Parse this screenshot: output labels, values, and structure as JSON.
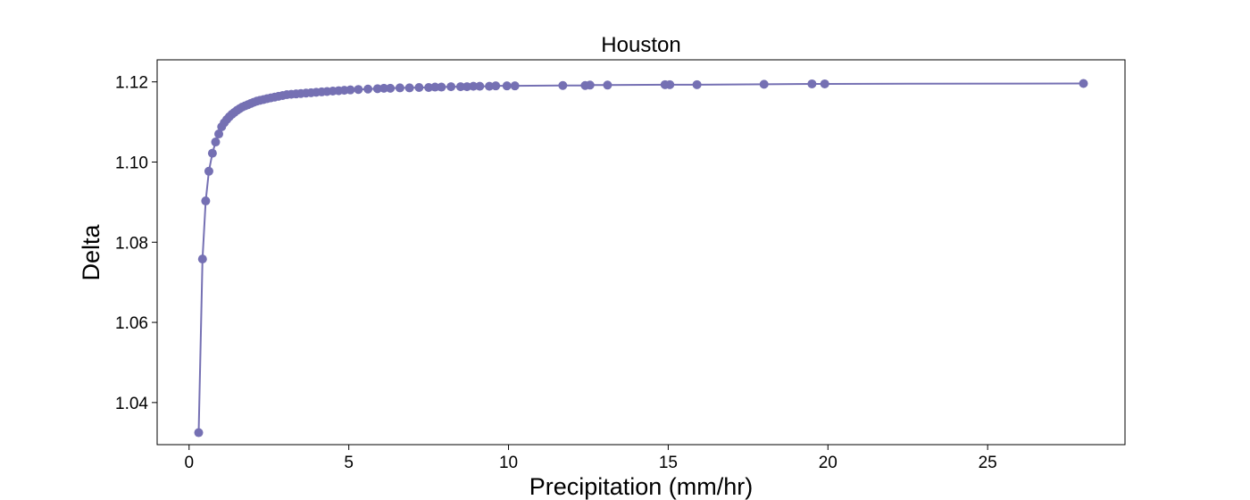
{
  "chart_data": {
    "type": "line",
    "title": "Houston",
    "xlabel": "Precipitation (mm/hr)",
    "ylabel": "Delta",
    "xlim": [
      -1.0,
      29.3
    ],
    "ylim": [
      1.0295,
      1.1255
    ],
    "xticks": [
      0,
      5,
      10,
      15,
      20,
      25
    ],
    "xtick_labels": [
      "0",
      "5",
      "10",
      "15",
      "20",
      "25"
    ],
    "yticks": [
      1.04,
      1.06,
      1.08,
      1.1,
      1.12
    ],
    "ytick_labels": [
      "1.04",
      "1.06",
      "1.08",
      "1.10",
      "1.12"
    ],
    "grid": false,
    "legend": "none",
    "color": "#7570b3",
    "marker": "circle",
    "series": [
      {
        "x": [
          0.3,
          0.42,
          0.52,
          0.62,
          0.73,
          0.83,
          0.93,
          1.02,
          1.1,
          1.18,
          1.26,
          1.34,
          1.42,
          1.5,
          1.58,
          1.66,
          1.75,
          1.84,
          1.93,
          2.02,
          2.12,
          2.22,
          2.33,
          2.44,
          2.56,
          2.68,
          2.8,
          2.93,
          3.06,
          3.2,
          3.35,
          3.5,
          3.66,
          3.82,
          3.98,
          4.15,
          4.32,
          4.5,
          4.68,
          4.86,
          5.05,
          5.3,
          5.6,
          5.9,
          6.1,
          6.3,
          6.6,
          6.9,
          7.2,
          7.5,
          7.7,
          7.9,
          8.2,
          8.5,
          8.7,
          8.9,
          9.1,
          9.4,
          9.6,
          9.95,
          10.2,
          11.7,
          12.4,
          12.55,
          13.1,
          14.9,
          15.05,
          15.9,
          18.0,
          19.5,
          19.9,
          28.0
        ],
        "y": [
          1.0325,
          1.0758,
          1.0903,
          1.0977,
          1.1022,
          1.105,
          1.107,
          1.1088,
          1.1098,
          1.1106,
          1.1113,
          1.1119,
          1.1124,
          1.1129,
          1.1133,
          1.1137,
          1.114,
          1.1143,
          1.1146,
          1.1149,
          1.1152,
          1.1154,
          1.1156,
          1.1158,
          1.116,
          1.1162,
          1.1164,
          1.1166,
          1.1168,
          1.1169,
          1.117,
          1.1171,
          1.1172,
          1.1173,
          1.1174,
          1.1175,
          1.1176,
          1.1177,
          1.1178,
          1.1179,
          1.118,
          1.1181,
          1.1182,
          1.1183,
          1.1184,
          1.1184,
          1.1185,
          1.1185,
          1.1186,
          1.1186,
          1.1187,
          1.1187,
          1.1188,
          1.1188,
          1.1188,
          1.1189,
          1.1189,
          1.1189,
          1.119,
          1.119,
          1.119,
          1.1191,
          1.1191,
          1.1192,
          1.1192,
          1.1193,
          1.1193,
          1.1193,
          1.1194,
          1.1195,
          1.1195,
          1.1196
        ]
      }
    ]
  }
}
